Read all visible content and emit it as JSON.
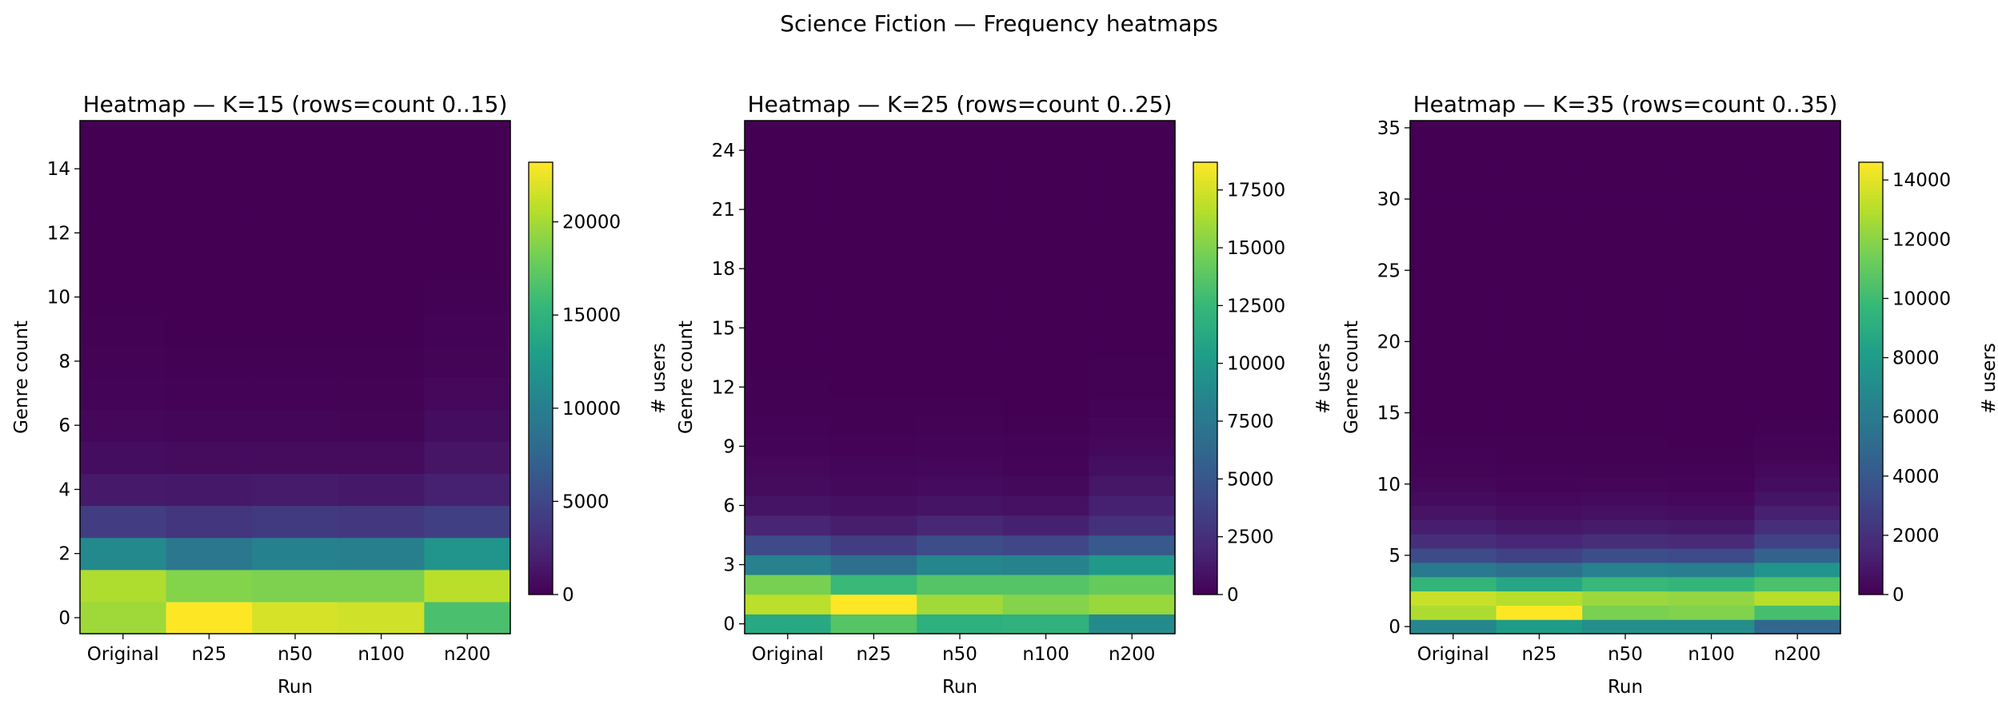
{
  "figure_title": "Science Fiction — Frequency heatmaps",
  "colormap": {
    "name": "viridis",
    "stops": [
      "#440154",
      "#482878",
      "#3e4989",
      "#31688e",
      "#26828e",
      "#1f9e89",
      "#35b779",
      "#6ece58",
      "#b5de2b",
      "#fde725"
    ]
  },
  "chart_data": [
    {
      "type": "heatmap",
      "title": "Heatmap — K=15 (rows=count 0..15)",
      "xlabel": "Run",
      "ylabel": "Genre count",
      "colorbar_label": "# users",
      "x": [
        "Original",
        "n25",
        "n50",
        "n100",
        "n200"
      ],
      "y_range": [
        0,
        15
      ],
      "y_ticks": [
        0,
        2,
        4,
        6,
        8,
        10,
        12,
        14
      ],
      "vmin": 0,
      "vmax": 23200,
      "cbar_ticks": [
        0,
        5000,
        10000,
        15000,
        20000
      ],
      "values": [
        [
          19800,
          23200,
          21800,
          21600,
          16400
        ],
        [
          20400,
          18800,
          18600,
          18600,
          20800
        ],
        [
          11000,
          9200,
          10200,
          10000,
          12000
        ],
        [
          4200,
          3600,
          4000,
          3800,
          4400
        ],
        [
          1600,
          1500,
          1700,
          1500,
          2100
        ],
        [
          800,
          650,
          700,
          650,
          1300
        ],
        [
          400,
          300,
          300,
          250,
          800
        ],
        [
          200,
          120,
          120,
          100,
          450
        ],
        [
          100,
          60,
          60,
          40,
          250
        ],
        [
          60,
          30,
          30,
          20,
          120
        ],
        [
          30,
          15,
          15,
          10,
          60
        ],
        [
          15,
          8,
          8,
          5,
          30
        ],
        [
          8,
          4,
          4,
          2,
          15
        ],
        [
          4,
          2,
          2,
          1,
          8
        ],
        [
          2,
          1,
          1,
          0,
          4
        ],
        [
          1,
          0,
          0,
          0,
          2
        ]
      ]
    },
    {
      "type": "heatmap",
      "title": "Heatmap — K=25 (rows=count 0..25)",
      "xlabel": "Run",
      "ylabel": "Genre count",
      "colorbar_label": "# users",
      "x": [
        "Original",
        "n25",
        "n50",
        "n100",
        "n200"
      ],
      "y_range": [
        0,
        25
      ],
      "y_ticks": [
        0,
        3,
        6,
        9,
        12,
        15,
        18,
        21,
        24
      ],
      "vmin": 0,
      "vmax": 18700,
      "cbar_ticks": [
        0,
        2500,
        5000,
        7500,
        10000,
        12500,
        15000,
        17500
      ],
      "values": [
        [
          11200,
          13600,
          11800,
          12000,
          9000
        ],
        [
          16800,
          18700,
          16000,
          15200,
          15800
        ],
        [
          14800,
          12600,
          13600,
          13600,
          14200
        ],
        [
          8200,
          6800,
          8600,
          8400,
          10000
        ],
        [
          4200,
          3400,
          4400,
          4000,
          5200
        ],
        [
          1900,
          1500,
          2000,
          1700,
          2600
        ],
        [
          1000,
          800,
          1000,
          850,
          1700
        ],
        [
          600,
          450,
          550,
          400,
          1100
        ],
        [
          350,
          250,
          300,
          200,
          750
        ],
        [
          200,
          130,
          160,
          100,
          450
        ],
        [
          110,
          70,
          80,
          50,
          250
        ],
        [
          60,
          35,
          40,
          25,
          130
        ],
        [
          30,
          18,
          20,
          12,
          70
        ],
        [
          15,
          9,
          10,
          6,
          35
        ],
        [
          8,
          5,
          5,
          3,
          18
        ],
        [
          4,
          2,
          2,
          1,
          9
        ],
        [
          2,
          1,
          1,
          0,
          4
        ],
        [
          1,
          0,
          0,
          0,
          2
        ],
        [
          0,
          0,
          0,
          0,
          1
        ],
        [
          0,
          0,
          0,
          0,
          0
        ],
        [
          0,
          0,
          0,
          0,
          0
        ],
        [
          0,
          0,
          0,
          0,
          0
        ],
        [
          0,
          0,
          0,
          0,
          0
        ],
        [
          0,
          0,
          0,
          0,
          0
        ],
        [
          0,
          0,
          0,
          0,
          0
        ],
        [
          0,
          0,
          0,
          0,
          0
        ]
      ]
    },
    {
      "type": "heatmap",
      "title": "Heatmap — K=35 (rows=count 0..35)",
      "xlabel": "Run",
      "ylabel": "Genre count",
      "colorbar_label": "# users",
      "x": [
        "Original",
        "n25",
        "n50",
        "n100",
        "n200"
      ],
      "y_range": [
        0,
        35
      ],
      "y_ticks": [
        0,
        5,
        10,
        15,
        20,
        25,
        30,
        35
      ],
      "vmin": 0,
      "vmax": 14600,
      "cbar_ticks": [
        0,
        2000,
        4000,
        6000,
        8000,
        10000,
        12000,
        14000
      ],
      "values": [
        [
          6800,
          8000,
          7200,
          7200,
          4800
        ],
        [
          12800,
          14600,
          11600,
          11800,
          10200
        ],
        [
          13400,
          13000,
          12400,
          12200,
          13000
        ],
        [
          9600,
          8600,
          9800,
          9600,
          10400
        ],
        [
          6000,
          5400,
          6400,
          6200,
          7600
        ],
        [
          3400,
          2900,
          3500,
          3300,
          4600
        ],
        [
          1900,
          1600,
          1900,
          1700,
          2900
        ],
        [
          1200,
          900,
          1100,
          950,
          1900
        ],
        [
          750,
          550,
          650,
          550,
          1300
        ],
        [
          450,
          300,
          380,
          300,
          800
        ],
        [
          260,
          170,
          210,
          160,
          480
        ],
        [
          150,
          90,
          110,
          80,
          280
        ],
        [
          80,
          45,
          55,
          40,
          150
        ],
        [
          40,
          22,
          28,
          20,
          80
        ],
        [
          20,
          11,
          14,
          10,
          40
        ],
        [
          10,
          5,
          7,
          5,
          20
        ],
        [
          5,
          3,
          3,
          2,
          10
        ],
        [
          2,
          1,
          1,
          1,
          5
        ],
        [
          1,
          0,
          0,
          0,
          2
        ],
        [
          0,
          0,
          0,
          0,
          1
        ],
        [
          0,
          0,
          0,
          0,
          0
        ],
        [
          0,
          0,
          0,
          0,
          0
        ],
        [
          0,
          0,
          0,
          0,
          0
        ],
        [
          0,
          0,
          0,
          0,
          0
        ],
        [
          0,
          0,
          0,
          0,
          0
        ],
        [
          0,
          0,
          0,
          0,
          0
        ],
        [
          0,
          0,
          0,
          0,
          0
        ],
        [
          0,
          0,
          0,
          0,
          0
        ],
        [
          0,
          0,
          0,
          0,
          0
        ],
        [
          0,
          0,
          0,
          0,
          0
        ],
        [
          0,
          0,
          0,
          0,
          0
        ],
        [
          0,
          0,
          0,
          0,
          0
        ],
        [
          0,
          0,
          0,
          0,
          0
        ],
        [
          0,
          0,
          0,
          0,
          0
        ],
        [
          0,
          0,
          0,
          0,
          0
        ],
        [
          0,
          0,
          0,
          0,
          0
        ]
      ]
    }
  ]
}
